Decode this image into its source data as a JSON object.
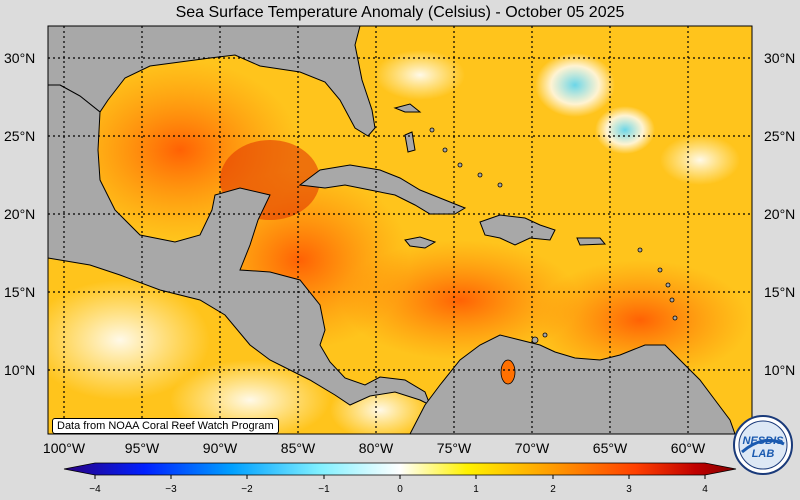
{
  "title": "Sea Surface Temperature Anomaly (Celsius) - October 05 2025",
  "credit": "Data from NOAA Coral Reef Watch Program",
  "logo_text": "NESDIS LAB",
  "lat_labels": [
    "30°N",
    "25°N",
    "20°N",
    "15°N",
    "10°N"
  ],
  "lon_labels": [
    "100°W",
    "95°W",
    "90°W",
    "85°W",
    "80°W",
    "75°W",
    "70°W",
    "65°W",
    "60°W"
  ],
  "colorbar": {
    "ticks": [
      "−4",
      "−3",
      "−2",
      "−1",
      "0",
      "1",
      "2",
      "3",
      "4"
    ],
    "colors": [
      "#2a0080",
      "#0020ff",
      "#00a0ff",
      "#80f0ff",
      "#ffffff",
      "#fff200",
      "#ffa000",
      "#ff4000",
      "#c00000",
      "#800000"
    ]
  },
  "colors": {
    "land": "#a8a8a8",
    "ocean_base": "#ffd020",
    "background": "#dcdcdc"
  }
}
